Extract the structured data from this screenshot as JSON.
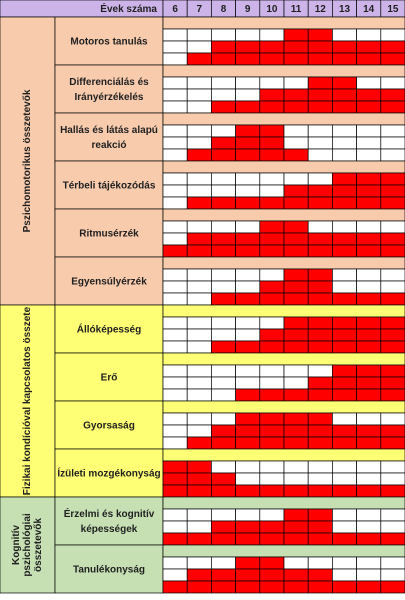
{
  "header": {
    "title": "Évek száma",
    "years": [
      "6",
      "7",
      "8",
      "9",
      "10",
      "11",
      "12",
      "13",
      "14",
      "15"
    ]
  },
  "groups": [
    {
      "label_lines": [
        "Pszichomotorikus összetevők"
      ],
      "color": "#f8cbad",
      "items": [
        {
          "label_lines": [
            "Motoros tanulás"
          ],
          "cells": [
            [
              false,
              false,
              false,
              false,
              false,
              true,
              true,
              false,
              false,
              false
            ],
            [
              false,
              false,
              true,
              true,
              true,
              true,
              true,
              true,
              true,
              true
            ],
            [
              false,
              true,
              true,
              true,
              true,
              true,
              true,
              true,
              true,
              true
            ]
          ]
        },
        {
          "label_lines": [
            "Differenciálás és",
            "Irányérzékelés"
          ],
          "cells": [
            [
              false,
              false,
              false,
              false,
              false,
              false,
              true,
              true,
              false,
              false
            ],
            [
              false,
              false,
              false,
              false,
              true,
              true,
              true,
              true,
              true,
              true
            ],
            [
              false,
              false,
              true,
              true,
              true,
              true,
              true,
              true,
              true,
              true
            ]
          ]
        },
        {
          "label_lines": [
            "Hallás és látás alapú",
            "reakció"
          ],
          "cells": [
            [
              false,
              false,
              false,
              true,
              true,
              false,
              false,
              false,
              false,
              false
            ],
            [
              false,
              false,
              true,
              true,
              true,
              false,
              false,
              false,
              false,
              false
            ],
            [
              false,
              true,
              true,
              true,
              true,
              true,
              false,
              false,
              false,
              false
            ]
          ]
        },
        {
          "label_lines": [
            "Térbeli tájékozódás"
          ],
          "cells": [
            [
              false,
              false,
              false,
              false,
              false,
              false,
              false,
              true,
              true,
              true
            ],
            [
              false,
              false,
              false,
              false,
              false,
              true,
              true,
              true,
              true,
              true
            ],
            [
              false,
              true,
              true,
              true,
              true,
              true,
              true,
              true,
              true,
              true
            ]
          ]
        },
        {
          "label_lines": [
            "Ritmusérzék"
          ],
          "cells": [
            [
              false,
              false,
              false,
              false,
              true,
              true,
              false,
              false,
              false,
              false
            ],
            [
              false,
              true,
              true,
              true,
              true,
              true,
              true,
              true,
              true,
              true
            ],
            [
              true,
              true,
              true,
              true,
              true,
              true,
              true,
              true,
              true,
              true
            ]
          ]
        },
        {
          "label_lines": [
            "Egyensúlyérzék"
          ],
          "cells": [
            [
              false,
              false,
              false,
              false,
              false,
              true,
              true,
              false,
              false,
              false
            ],
            [
              false,
              false,
              false,
              false,
              true,
              true,
              true,
              false,
              false,
              false
            ],
            [
              false,
              false,
              true,
              true,
              true,
              true,
              true,
              true,
              true,
              true
            ]
          ]
        }
      ]
    },
    {
      "label_lines": [
        "Fizikai kondícióval kapcsolatos összete"
      ],
      "color": "#ffff75",
      "items": [
        {
          "label_lines": [
            "Állóképesség"
          ],
          "cells": [
            [
              false,
              false,
              false,
              false,
              false,
              true,
              true,
              true,
              true,
              true
            ],
            [
              false,
              false,
              false,
              false,
              true,
              true,
              true,
              true,
              true,
              true
            ],
            [
              false,
              false,
              true,
              true,
              true,
              true,
              true,
              true,
              true,
              true
            ]
          ]
        },
        {
          "label_lines": [
            "Erő"
          ],
          "cells": [
            [
              false,
              false,
              false,
              false,
              false,
              false,
              false,
              true,
              true,
              true
            ],
            [
              false,
              false,
              false,
              false,
              false,
              false,
              true,
              true,
              true,
              true
            ],
            [
              false,
              false,
              false,
              true,
              true,
              true,
              true,
              true,
              true,
              true
            ]
          ]
        },
        {
          "label_lines": [
            "Gyorsaság"
          ],
          "cells": [
            [
              false,
              false,
              false,
              true,
              true,
              true,
              true,
              false,
              false,
              false
            ],
            [
              false,
              false,
              true,
              true,
              true,
              true,
              true,
              true,
              true,
              true
            ],
            [
              false,
              true,
              true,
              true,
              true,
              true,
              true,
              true,
              true,
              true
            ]
          ]
        },
        {
          "label_lines": [
            "Ízületi mozgékonyság"
          ],
          "cells": [
            [
              true,
              true,
              false,
              false,
              false,
              false,
              false,
              false,
              false,
              false
            ],
            [
              true,
              true,
              true,
              false,
              false,
              false,
              false,
              false,
              false,
              false
            ],
            [
              true,
              true,
              true,
              true,
              true,
              true,
              true,
              true,
              true,
              true
            ]
          ]
        }
      ]
    },
    {
      "label_lines": [
        "Kognitív",
        "pszichológiai",
        "összetevők"
      ],
      "color": "#c6e0b4",
      "items": [
        {
          "label_lines": [
            "Érzelmi és kognitív",
            "képességek"
          ],
          "cells": [
            [
              false,
              false,
              false,
              false,
              false,
              true,
              true,
              false,
              false,
              false
            ],
            [
              false,
              false,
              true,
              true,
              true,
              true,
              true,
              false,
              false,
              false
            ],
            [
              true,
              true,
              true,
              true,
              true,
              true,
              true,
              true,
              true,
              true
            ]
          ]
        },
        {
          "label_lines": [
            "Tanulékonyság"
          ],
          "cells": [
            [
              false,
              false,
              false,
              true,
              true,
              false,
              false,
              false,
              false,
              false
            ],
            [
              false,
              true,
              true,
              true,
              true,
              true,
              true,
              false,
              false,
              false
            ],
            [
              true,
              true,
              true,
              true,
              true,
              true,
              true,
              true,
              true,
              true
            ]
          ]
        }
      ]
    }
  ],
  "header_color": "#cdb4e8",
  "active_color": "#ff0000",
  "inactive_color": "#ffffff"
}
